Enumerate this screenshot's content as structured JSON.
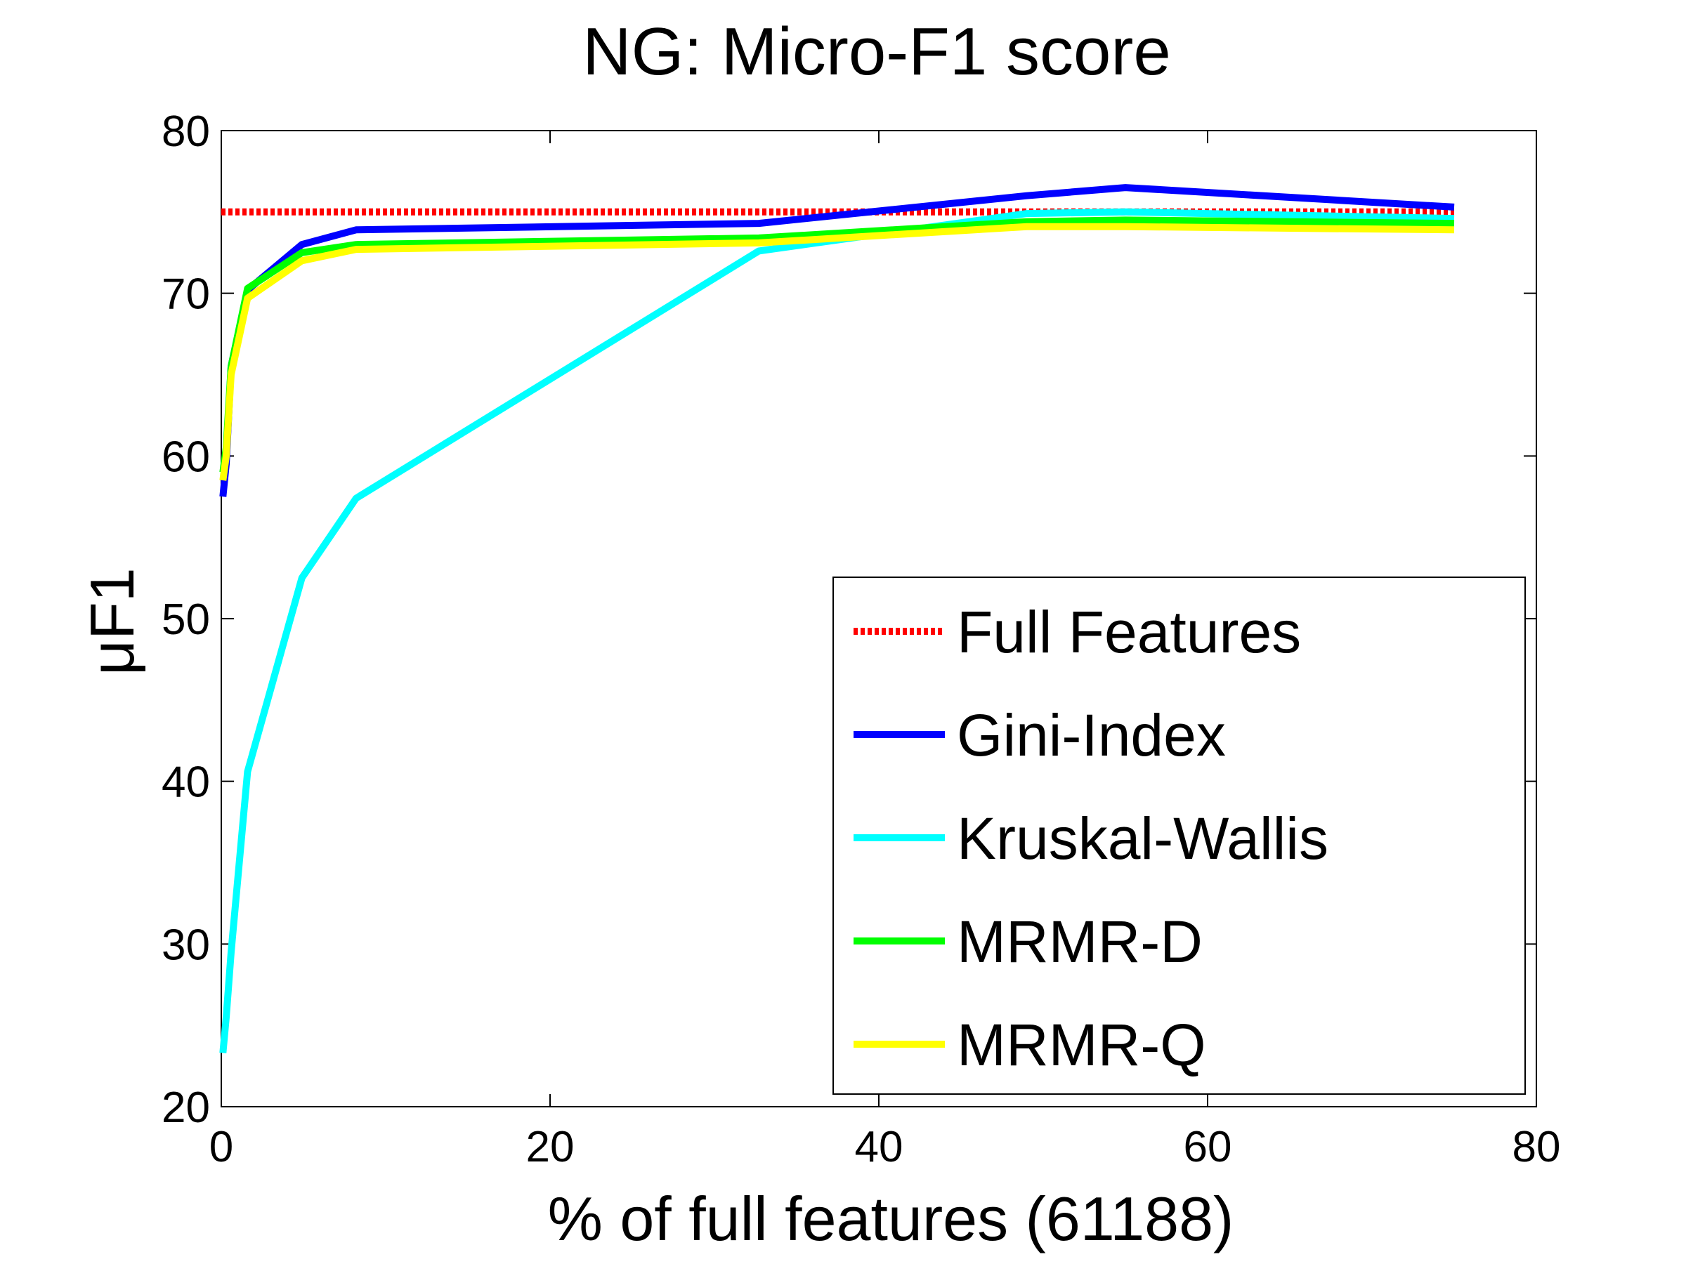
{
  "chart_data": {
    "type": "line",
    "title": "NG: Micro-F1 score",
    "xlabel": "% of full features (61188)",
    "ylabel": "μF1",
    "xlim": [
      0,
      80
    ],
    "ylim": [
      20,
      80
    ],
    "xticks": [
      0,
      20,
      40,
      60,
      80
    ],
    "yticks": [
      20,
      30,
      40,
      50,
      60,
      70,
      80
    ],
    "grid": false,
    "legend_position": "bottom-right",
    "series": [
      {
        "name": "Full Features",
        "color": "#ff0000",
        "style": "dotted",
        "x": [
          0,
          75
        ],
        "y": [
          75,
          75
        ]
      },
      {
        "name": "Gini-Index",
        "color": "#0000ff",
        "style": "solid",
        "x": [
          0.1,
          0.3,
          0.6,
          1.6,
          4.9,
          8.2,
          32.7,
          49,
          55,
          75
        ],
        "y": [
          57.5,
          59.5,
          65.5,
          70.2,
          73.0,
          73.9,
          74.3,
          76.0,
          76.5,
          75.3
        ]
      },
      {
        "name": "Kruskal-Wallis",
        "color": "#00ffff",
        "style": "solid",
        "x": [
          0.1,
          0.3,
          0.6,
          1.6,
          4.9,
          8.2,
          32.7,
          49,
          55,
          75
        ],
        "y": [
          23.3,
          25.5,
          29.5,
          40.6,
          52.5,
          57.4,
          72.6,
          74.9,
          75.0,
          74.6
        ]
      },
      {
        "name": "MRMR-D",
        "color": "#00ff00",
        "style": "solid",
        "x": [
          0.1,
          0.3,
          0.6,
          1.6,
          4.9,
          8.2,
          32.7,
          49,
          55,
          75
        ],
        "y": [
          59.0,
          60.5,
          65.5,
          70.3,
          72.5,
          73.0,
          73.4,
          74.4,
          74.5,
          74.3
        ]
      },
      {
        "name": "MRMR-Q",
        "color": "#ffff00",
        "style": "solid",
        "x": [
          0.1,
          0.3,
          0.6,
          1.6,
          4.9,
          8.2,
          32.7,
          49,
          55,
          75
        ],
        "y": [
          58.5,
          60.0,
          65.0,
          69.7,
          72.0,
          72.7,
          73.1,
          74.1,
          74.1,
          73.9
        ]
      }
    ]
  }
}
